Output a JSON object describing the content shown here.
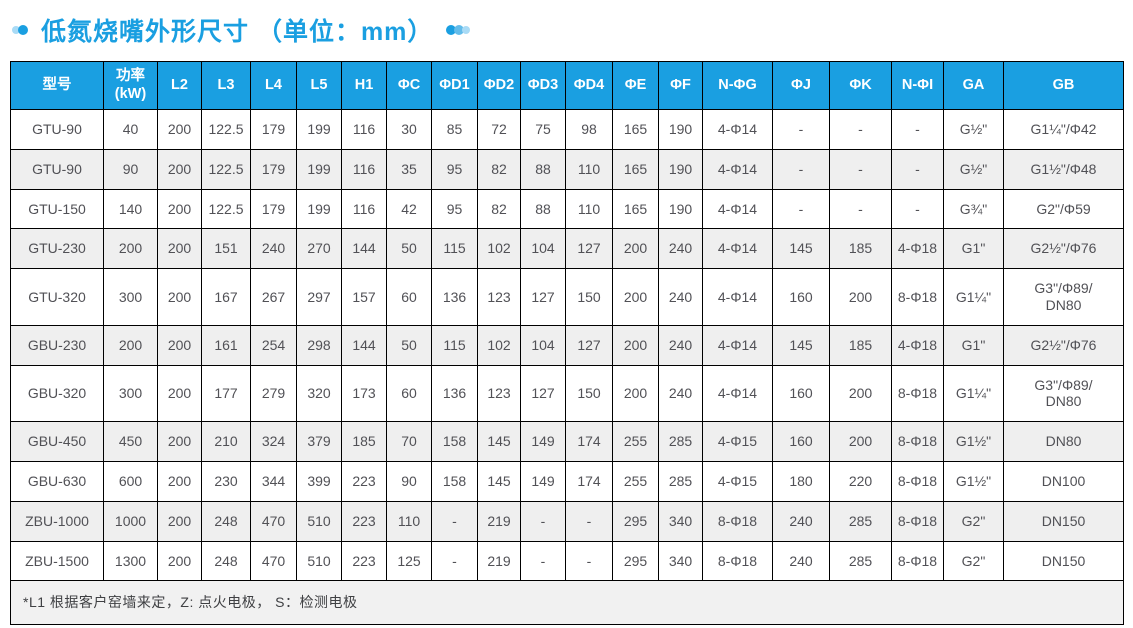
{
  "title": {
    "text": "低氮烧嘴外形尺寸 （单位：mm）"
  },
  "decor": {
    "left_dots": "accent-dots",
    "right_dots": "accent-dots"
  },
  "colors": {
    "accent_blue": "#1A9FE1",
    "accent_blue_dark": "#0E8FD6",
    "accent_blue_mid": "#63BCEA",
    "accent_blue_light": "#A9DBF6",
    "header_text": "#FFFFFF",
    "body_text": "#515156",
    "row_alt_bg": "#EFEFEF",
    "footnote_bg": "#F1F1F1",
    "border": "#000000"
  },
  "table": {
    "columns": [
      "型号",
      "功率\n(kW)",
      "L2",
      "L3",
      "L4",
      "L5",
      "H1",
      "ΦC",
      "ΦD1",
      "ΦD2",
      "ΦD3",
      "ΦD4",
      "ΦE",
      "ΦF",
      "N-ΦG",
      "ΦJ",
      "ΦK",
      "N-ΦI",
      "GA",
      "GB"
    ],
    "rows": [
      [
        "GTU-90",
        "40",
        "200",
        "122.5",
        "179",
        "199",
        "116",
        "30",
        "85",
        "72",
        "75",
        "98",
        "165",
        "190",
        "4-Φ14",
        "-",
        "-",
        "-",
        "G½\"",
        "G1¼\"/Φ42"
      ],
      [
        "GTU-90",
        "90",
        "200",
        "122.5",
        "179",
        "199",
        "116",
        "35",
        "95",
        "82",
        "88",
        "110",
        "165",
        "190",
        "4-Φ14",
        "-",
        "-",
        "-",
        "G½\"",
        "G1½\"/Φ48"
      ],
      [
        "GTU-150",
        "140",
        "200",
        "122.5",
        "179",
        "199",
        "116",
        "42",
        "95",
        "82",
        "88",
        "110",
        "165",
        "190",
        "4-Φ14",
        "-",
        "-",
        "-",
        "G¾\"",
        "G2\"/Φ59"
      ],
      [
        "GTU-230",
        "200",
        "200",
        "151",
        "240",
        "270",
        "144",
        "50",
        "115",
        "102",
        "104",
        "127",
        "200",
        "240",
        "4-Φ14",
        "145",
        "185",
        "4-Φ18",
        "G1\"",
        "G2½\"/Φ76"
      ],
      [
        "GTU-320",
        "300",
        "200",
        "167",
        "267",
        "297",
        "157",
        "60",
        "136",
        "123",
        "127",
        "150",
        "200",
        "240",
        "4-Φ14",
        "160",
        "200",
        "8-Φ18",
        "G1¼\"",
        "G3\"/Φ89/\nDN80"
      ],
      [
        "GBU-230",
        "200",
        "200",
        "161",
        "254",
        "298",
        "144",
        "50",
        "115",
        "102",
        "104",
        "127",
        "200",
        "240",
        "4-Φ14",
        "145",
        "185",
        "4-Φ18",
        "G1\"",
        "G2½\"/Φ76"
      ],
      [
        "GBU-320",
        "300",
        "200",
        "177",
        "279",
        "320",
        "173",
        "60",
        "136",
        "123",
        "127",
        "150",
        "200",
        "240",
        "4-Φ14",
        "160",
        "200",
        "8-Φ18",
        "G1¼\"",
        "G3\"/Φ89/\nDN80"
      ],
      [
        "GBU-450",
        "450",
        "200",
        "210",
        "324",
        "379",
        "185",
        "70",
        "158",
        "145",
        "149",
        "174",
        "255",
        "285",
        "4-Φ15",
        "160",
        "200",
        "8-Φ18",
        "G1½\"",
        "DN80"
      ],
      [
        "GBU-630",
        "600",
        "200",
        "230",
        "344",
        "399",
        "223",
        "90",
        "158",
        "145",
        "149",
        "174",
        "255",
        "285",
        "4-Φ15",
        "180",
        "220",
        "8-Φ18",
        "G1½\"",
        "DN100"
      ],
      [
        "ZBU-1000",
        "1000",
        "200",
        "248",
        "470",
        "510",
        "223",
        "110",
        "-",
        "219",
        "-",
        "-",
        "295",
        "340",
        "8-Φ18",
        "240",
        "285",
        "8-Φ18",
        "G2\"",
        "DN150"
      ],
      [
        "ZBU-1500",
        "1300",
        "200",
        "248",
        "470",
        "510",
        "223",
        "125",
        "-",
        "219",
        "-",
        "-",
        "295",
        "340",
        "8-Φ18",
        "240",
        "285",
        "8-Φ18",
        "G2\"",
        "DN150"
      ]
    ],
    "footnote": "*L1 根据客户窑墙来定，Z: 点火电极， S：检测电极"
  }
}
